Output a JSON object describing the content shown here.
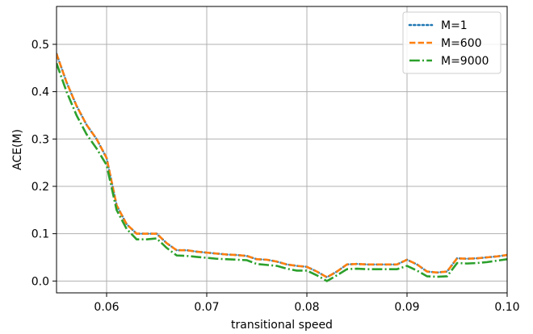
{
  "chart_data": {
    "type": "line",
    "xlabel": "transitional speed",
    "ylabel": "ACE(M)",
    "xlim": [
      0.055,
      0.1
    ],
    "ylim": [
      -0.025,
      0.58
    ],
    "xticks": [
      0.06,
      0.07,
      0.08,
      0.09,
      0.1
    ],
    "xtick_labels": [
      "0.06",
      "0.07",
      "0.08",
      "0.09",
      "0.10"
    ],
    "yticks": [
      0.0,
      0.1,
      0.2,
      0.3,
      0.4,
      0.5
    ],
    "ytick_labels": [
      "0.0",
      "0.1",
      "0.2",
      "0.3",
      "0.4",
      "0.5"
    ],
    "grid": true,
    "legend_position": "top-right",
    "x": [
      0.055,
      0.056,
      0.057,
      0.058,
      0.059,
      0.06,
      0.061,
      0.062,
      0.063,
      0.064,
      0.065,
      0.066,
      0.067,
      0.068,
      0.069,
      0.07,
      0.071,
      0.072,
      0.073,
      0.074,
      0.075,
      0.076,
      0.077,
      0.078,
      0.079,
      0.08,
      0.081,
      0.082,
      0.083,
      0.084,
      0.085,
      0.086,
      0.087,
      0.088,
      0.089,
      0.09,
      0.091,
      0.092,
      0.093,
      0.094,
      0.095,
      0.096,
      0.097,
      0.098,
      0.099,
      0.1
    ],
    "series": [
      {
        "name": "M=1",
        "color": "#1f77b4",
        "style": "dotted",
        "values": [
          0.48,
          0.42,
          0.37,
          0.33,
          0.3,
          0.26,
          0.16,
          0.12,
          0.1,
          0.1,
          0.1,
          0.08,
          0.065,
          0.065,
          0.062,
          0.06,
          0.058,
          0.056,
          0.055,
          0.053,
          0.046,
          0.045,
          0.041,
          0.035,
          0.032,
          0.03,
          0.02,
          0.008,
          0.02,
          0.035,
          0.036,
          0.035,
          0.035,
          0.035,
          0.035,
          0.045,
          0.035,
          0.02,
          0.018,
          0.02,
          0.048,
          0.047,
          0.048,
          0.05,
          0.052,
          0.055
        ]
      },
      {
        "name": "M=600",
        "color": "#ff7f0e",
        "style": "dashed",
        "values": [
          0.48,
          0.42,
          0.37,
          0.33,
          0.3,
          0.26,
          0.16,
          0.12,
          0.1,
          0.1,
          0.1,
          0.08,
          0.065,
          0.065,
          0.062,
          0.06,
          0.058,
          0.056,
          0.055,
          0.053,
          0.046,
          0.045,
          0.041,
          0.035,
          0.032,
          0.03,
          0.02,
          0.008,
          0.02,
          0.035,
          0.036,
          0.035,
          0.035,
          0.035,
          0.035,
          0.045,
          0.035,
          0.02,
          0.018,
          0.02,
          0.048,
          0.047,
          0.048,
          0.05,
          0.052,
          0.055
        ]
      },
      {
        "name": "M=9000",
        "color": "#2ca02c",
        "style": "dashdot",
        "values": [
          0.46,
          0.4,
          0.35,
          0.31,
          0.28,
          0.245,
          0.15,
          0.11,
          0.088,
          0.088,
          0.09,
          0.07,
          0.054,
          0.053,
          0.051,
          0.049,
          0.047,
          0.046,
          0.045,
          0.044,
          0.036,
          0.034,
          0.032,
          0.026,
          0.022,
          0.022,
          0.012,
          0.0,
          0.012,
          0.025,
          0.026,
          0.025,
          0.025,
          0.025,
          0.025,
          0.032,
          0.022,
          0.01,
          0.009,
          0.01,
          0.038,
          0.037,
          0.038,
          0.04,
          0.043,
          0.046
        ]
      }
    ]
  }
}
